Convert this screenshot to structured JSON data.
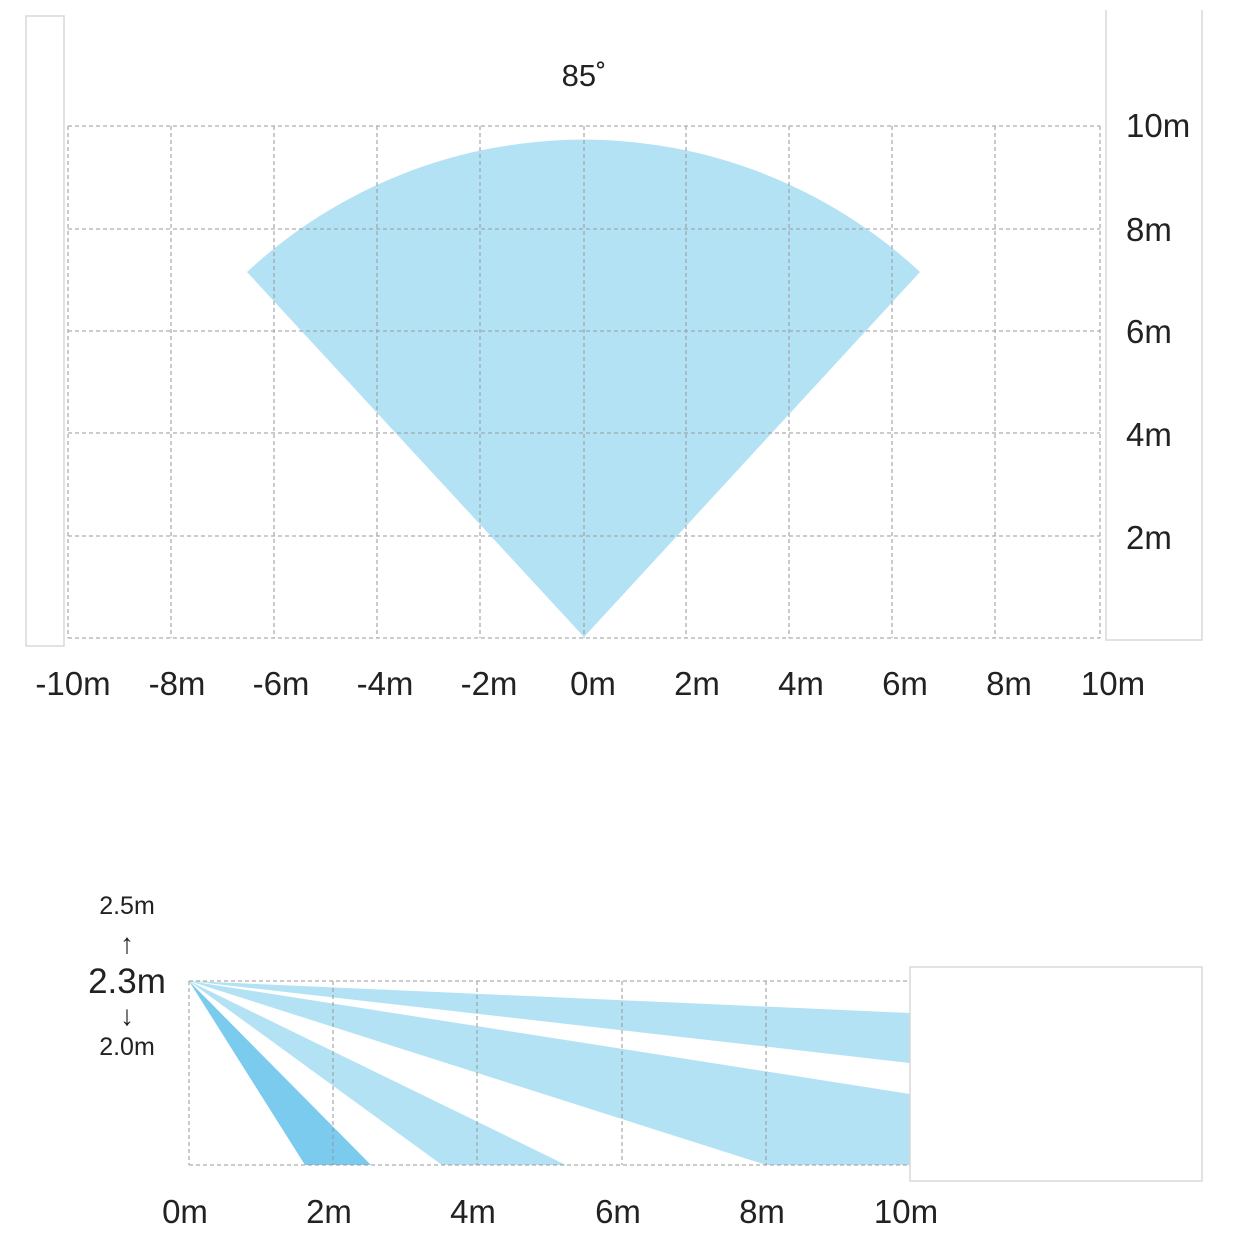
{
  "top_view": {
    "angle_label": "85˚",
    "x_ticks": [
      "-10m",
      "-8m",
      "-6m",
      "-4m",
      "-2m",
      "0m",
      "2m",
      "4m",
      "6m",
      "8m",
      "10m"
    ],
    "y_ticks": [
      "2m",
      "4m",
      "6m",
      "8m",
      "10m"
    ],
    "coverage": {
      "type": "sector",
      "angle_deg": 85,
      "range_m": 10,
      "x_range_m": [
        -10,
        10
      ],
      "y_range_m": [
        0,
        10
      ]
    },
    "colors": {
      "coverage": "#b3e2f5",
      "grid": "#9a9a9a"
    }
  },
  "side_view": {
    "height_max_label": "2.5m",
    "height_label": "2.3m",
    "height_min_label": "2.0m",
    "up_arrow": "↑",
    "down_arrow": "↓",
    "x_ticks": [
      "0m",
      "2m",
      "4m",
      "6m",
      "8m",
      "10m"
    ],
    "mount_height_m": 2.3,
    "beams": [
      {
        "name": "",
        "end_x_m": [
          1.6,
          2.5
        ],
        "end_y_m": 0,
        "color": "#7acbee"
      },
      {
        "name": "",
        "end_x_m": [
          3.5,
          5.2
        ],
        "end_y_m": 0,
        "color": "#b3e2f5"
      },
      {
        "name": "",
        "end_x_m": [
          8.0,
          10.0
        ],
        "end_y_m_at_10": 0.9,
        "color": "#b3e2f5"
      },
      {
        "name": "",
        "end_x_m": [
          10.0,
          10.0
        ],
        "end_y_m_at_10": [
          1.3,
          1.9
        ],
        "color": "#b3e2f5"
      }
    ],
    "colors": {
      "beam_dark": "#7acbee",
      "beam_light": "#b3e2f5",
      "grid": "#9a9a9a"
    }
  }
}
